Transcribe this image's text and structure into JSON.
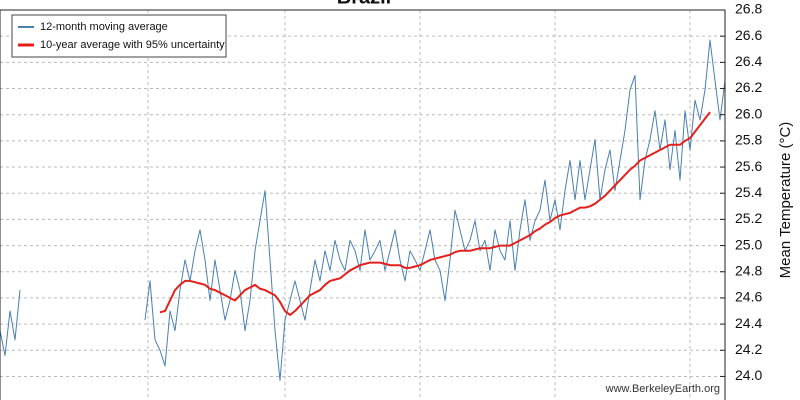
{
  "chart_data": {
    "type": "line",
    "title": "Brazil",
    "y_label": "Mean Temperature (°C)",
    "source": "www.BerkeleyEarth.org",
    "legend": "upper left",
    "grid": true,
    "ylim": [
      23.82,
      26.8
    ],
    "yticks": [
      {
        "value": 24.0,
        "label": "24.0"
      },
      24.2,
      24.4,
      24.6,
      24.8,
      {
        "value": 25.0,
        "label": "25.0"
      },
      25.2,
      25.4,
      25.6,
      25.8,
      {
        "value": 26.0,
        "label": "26.0"
      },
      26.2,
      26.4,
      26.6,
      26.8
    ],
    "series": [
      {
        "name": "12-month moving average",
        "color": "#4a7fb0",
        "width": 1,
        "values": [
          24.35,
          24.16,
          24.5,
          24.28,
          24.66,
          null,
          null,
          null,
          null,
          null,
          null,
          null,
          null,
          null,
          null,
          null,
          null,
          null,
          null,
          null,
          null,
          null,
          null,
          null,
          null,
          null,
          null,
          null,
          null,
          24.43,
          24.73,
          24.28,
          24.2,
          24.08,
          24.5,
          24.35,
          24.66,
          24.89,
          24.73,
          24.96,
          25.12,
          24.89,
          24.58,
          24.89,
          24.66,
          24.43,
          24.58,
          24.81,
          24.66,
          24.35,
          24.58,
          24.96,
          25.19,
          25.42,
          24.89,
          24.35,
          23.97,
          24.43,
          24.58,
          24.73,
          24.58,
          24.43,
          24.66,
          24.89,
          24.73,
          24.96,
          24.81,
          25.04,
          24.89,
          24.81,
          25.04,
          24.96,
          24.81,
          25.12,
          24.89,
          24.96,
          25.04,
          24.81,
          24.96,
          25.12,
          24.89,
          24.73,
          24.96,
          24.89,
          24.81,
          24.96,
          25.12,
          24.89,
          24.81,
          24.58,
          24.89,
          25.27,
          25.12,
          24.96,
          25.04,
          25.19,
          24.96,
          25.04,
          24.81,
          25.12,
          24.96,
          24.89,
          25.19,
          24.81,
          25.12,
          25.35,
          25.04,
          25.19,
          25.27,
          25.5,
          25.19,
          25.35,
          25.12,
          25.42,
          25.65,
          25.35,
          25.65,
          25.35,
          25.58,
          25.81,
          25.35,
          25.58,
          25.73,
          25.42,
          25.65,
          25.88,
          26.19,
          26.3,
          25.35,
          25.65,
          25.81,
          26.03,
          25.73,
          25.96,
          25.58,
          25.88,
          25.5,
          26.03,
          25.73,
          26.11,
          25.96,
          26.19,
          26.57,
          26.26,
          25.96,
          26.26
        ]
      },
      {
        "name": "10-year average with 95% uncertainty",
        "color": "#e3201b",
        "width": 2,
        "values": [
          null,
          null,
          null,
          null,
          null,
          null,
          null,
          null,
          null,
          null,
          null,
          null,
          null,
          null,
          null,
          null,
          null,
          null,
          null,
          null,
          null,
          null,
          null,
          null,
          null,
          null,
          null,
          null,
          null,
          null,
          null,
          null,
          24.49,
          24.5,
          24.58,
          24.66,
          24.7,
          24.73,
          24.73,
          24.72,
          24.71,
          24.7,
          24.67,
          24.66,
          24.64,
          24.62,
          24.6,
          24.58,
          24.62,
          24.66,
          24.68,
          24.7,
          24.67,
          24.66,
          24.64,
          24.62,
          24.57,
          24.5,
          24.47,
          24.5,
          24.54,
          24.58,
          24.62,
          24.64,
          24.66,
          24.7,
          24.73,
          24.74,
          24.75,
          24.78,
          24.81,
          24.83,
          24.85,
          24.86,
          24.87,
          24.87,
          24.87,
          24.86,
          24.85,
          24.85,
          24.85,
          24.83,
          24.83,
          24.84,
          24.85,
          24.87,
          24.89,
          24.9,
          24.91,
          24.92,
          24.93,
          24.95,
          24.96,
          24.96,
          24.96,
          24.97,
          24.98,
          24.98,
          24.98,
          24.99,
          25.0,
          25.0,
          25.0,
          25.02,
          25.04,
          25.06,
          25.08,
          25.11,
          25.13,
          25.16,
          25.18,
          25.21,
          25.23,
          25.24,
          25.25,
          25.27,
          25.29,
          25.29,
          25.3,
          25.32,
          25.35,
          25.38,
          25.42,
          25.46,
          25.5,
          25.54,
          25.58,
          25.61,
          25.65,
          25.67,
          25.69,
          25.71,
          25.73,
          25.75,
          25.77,
          25.77,
          25.77,
          25.8,
          25.82,
          25.87,
          25.92,
          25.97,
          26.02,
          null,
          null,
          null
        ]
      }
    ]
  }
}
